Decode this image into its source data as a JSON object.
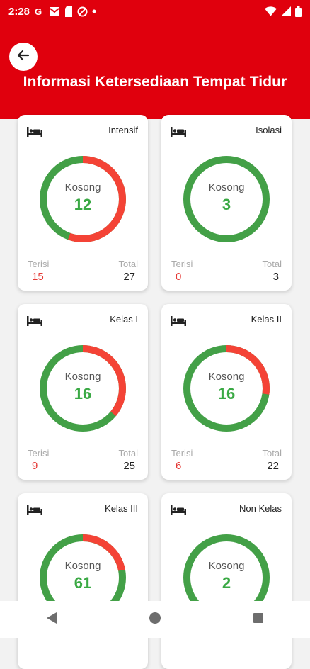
{
  "status_bar": {
    "time": "2:28",
    "left_icons": [
      "google-icon",
      "gmail-icon",
      "sim-card-icon",
      "no-disturb-icon",
      "dot-icon"
    ],
    "right_icons": [
      "wifi-icon",
      "cellular-signal-icon",
      "battery-icon"
    ]
  },
  "header": {
    "title": "Informasi Ketersediaan Tempat Tidur",
    "back_icon": "arrow-left-icon",
    "color": "#e0000d"
  },
  "labels": {
    "kosong": "Kosong",
    "terisi": "Terisi",
    "total": "Total"
  },
  "colors": {
    "available": "#43a047",
    "occupied": "#f44336",
    "terisi_value": "#e53935"
  },
  "cards": [
    {
      "title": "Intensif",
      "kosong": 12,
      "terisi": 15,
      "total": 27
    },
    {
      "title": "Isolasi",
      "kosong": 3,
      "terisi": 0,
      "total": 3
    },
    {
      "title": "Kelas I",
      "kosong": 16,
      "terisi": 9,
      "total": 25
    },
    {
      "title": "Kelas II",
      "kosong": 16,
      "terisi": 6,
      "total": 22
    },
    {
      "title": "Kelas III",
      "kosong": 61
    },
    {
      "title": "Non Kelas",
      "kosong": 2
    }
  ],
  "nav": [
    "back-triangle-icon",
    "home-circle-icon",
    "recents-square-icon"
  ]
}
